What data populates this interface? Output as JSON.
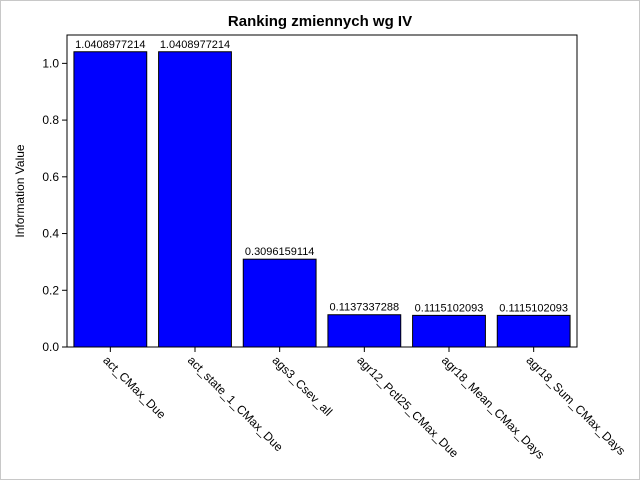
{
  "chart_data": {
    "type": "bar",
    "title": "Ranking zmiennych wg IV",
    "xlabel": "",
    "ylabel": "Information Value",
    "categories": [
      "act_CMax_Due",
      "act_state_1_CMax_Due",
      "ags3_Csev_all",
      "agr12_Pctl25_CMax_Due",
      "agr18_Mean_CMax_Days",
      "agr18_Sum_CMax_Days"
    ],
    "values": [
      1.0408977214,
      1.0408977214,
      0.3096159114,
      0.1137337288,
      0.1115102093,
      0.1115102093
    ],
    "value_labels": [
      "1.0408977214",
      "1.0408977214",
      "0.3096159114",
      "0.1137337288",
      "0.1115102093",
      "0.1115102093"
    ],
    "yticks": [
      "0.0",
      "0.2",
      "0.4",
      "0.6",
      "0.8",
      "1.0"
    ],
    "ylim": [
      0,
      1.1
    ],
    "grid": false,
    "bar_color": "#0000ff",
    "bar_edge_color": "#000000"
  }
}
